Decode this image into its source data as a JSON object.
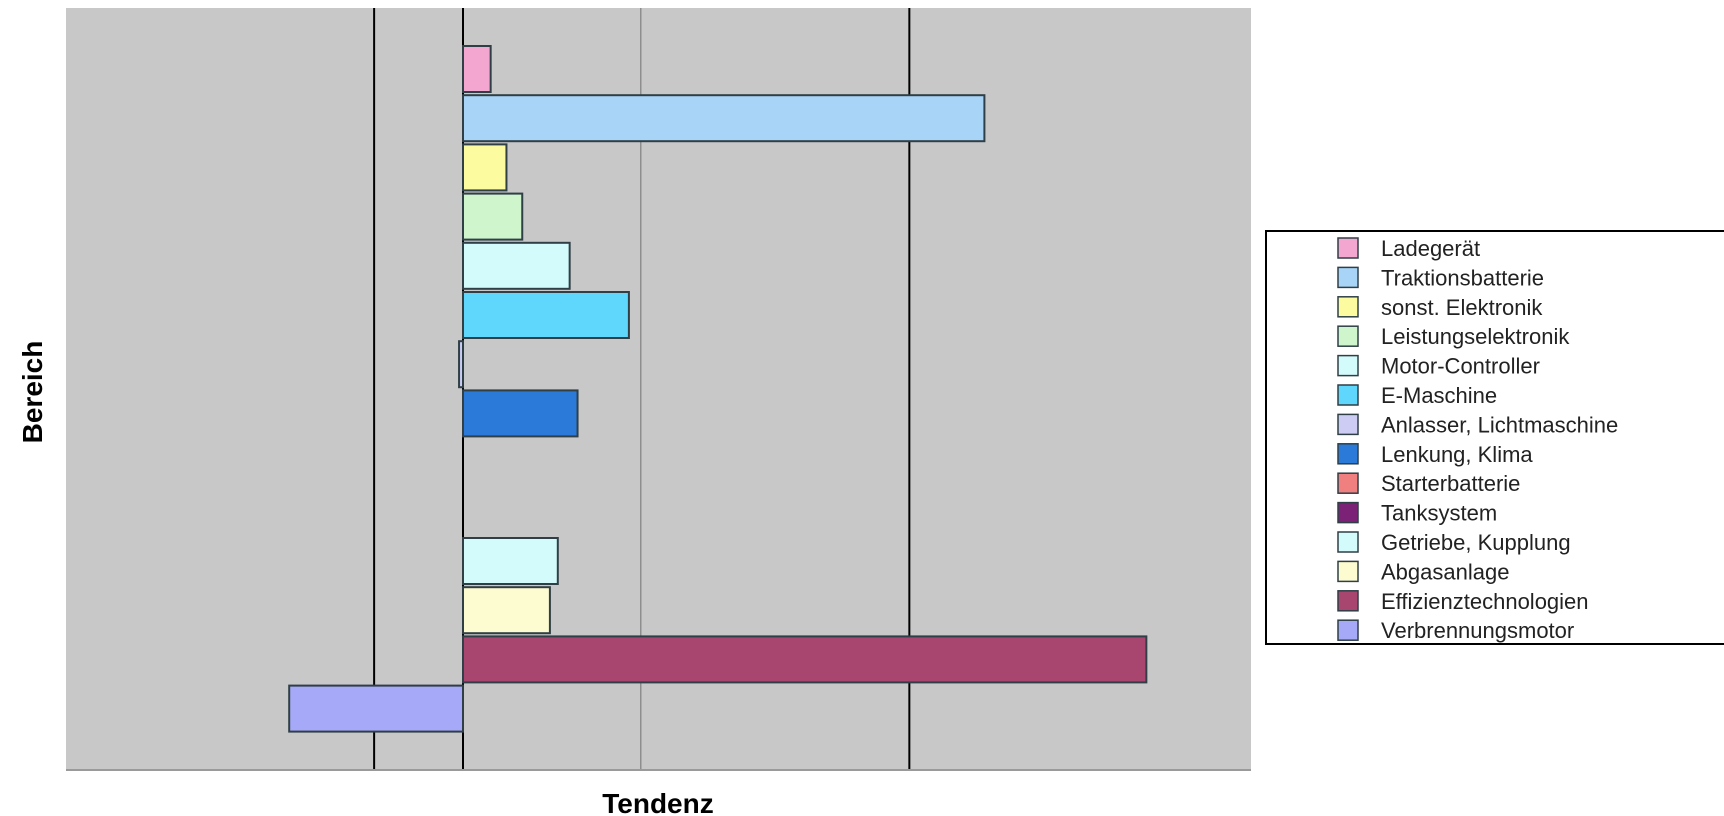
{
  "chart_data": {
    "type": "bar",
    "orientation": "horizontal",
    "title": "",
    "xlabel": "Tendenz",
    "ylabel": "Bereich",
    "xlim": [
      -1.0,
      2.0
    ],
    "grid": true,
    "legend_position": "right",
    "plot_background": "#c8c8c8",
    "series": [
      {
        "name": "Ladegerät",
        "value": 0.07,
        "color": "#f3a6d0"
      },
      {
        "name": "Traktionsbatterie",
        "value": 1.32,
        "color": "#a8d4f8"
      },
      {
        "name": "sonst. Elektronik",
        "value": 0.11,
        "color": "#fdfba0"
      },
      {
        "name": "Leistungselektronik",
        "value": 0.15,
        "color": "#cff5cc"
      },
      {
        "name": "Motor-Controller",
        "value": 0.27,
        "color": "#d4fbfb"
      },
      {
        "name": "E-Maschine",
        "value": 0.42,
        "color": "#5fd6fb"
      },
      {
        "name": "Anlasser, Lichtmaschine",
        "value": -0.01,
        "color": "#ccccf5"
      },
      {
        "name": "Lenkung, Klima",
        "value": 0.29,
        "color": "#2b7ad9"
      },
      {
        "name": "Starterbatterie",
        "value": 0.0,
        "color": "#f08080"
      },
      {
        "name": "Tanksystem",
        "value": 0.0,
        "color": "#7b2277"
      },
      {
        "name": "Getriebe, Kupplung",
        "value": 0.24,
        "color": "#d4fbfb"
      },
      {
        "name": "Abgasanlage",
        "value": 0.22,
        "color": "#fdfbd0"
      },
      {
        "name": "Effizienztechnologien",
        "value": 1.73,
        "color": "#a8466f"
      },
      {
        "name": "Verbrennungsmotor",
        "value": -0.44,
        "color": "#a6a8f8"
      }
    ]
  }
}
